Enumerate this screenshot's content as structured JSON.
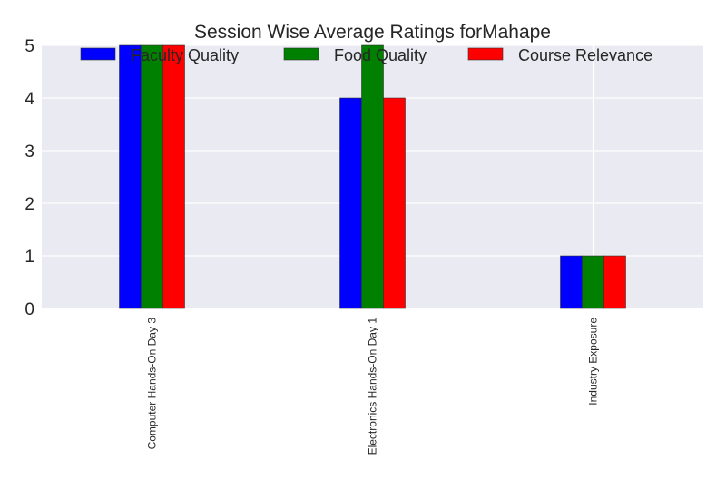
{
  "chart_data": {
    "type": "bar",
    "title": "Session Wise Average Ratings forMahape",
    "categories": [
      "Computer Hands-On Day 3",
      "Electronics Hands-On Day 1",
      "Industry Exposure"
    ],
    "series": [
      {
        "name": "Faculty Quality",
        "values": [
          5,
          4,
          1
        ],
        "color": "#0000ff"
      },
      {
        "name": "Food Quality",
        "values": [
          5,
          5,
          1
        ],
        "color": "#008000"
      },
      {
        "name": "Course Relevance",
        "values": [
          5,
          4,
          1
        ],
        "color": "#ff0000"
      }
    ],
    "xlabel": "",
    "ylabel": "",
    "ylim": [
      0,
      5
    ],
    "yticks": [
      "0",
      "1",
      "2",
      "3",
      "4",
      "5"
    ],
    "grid": true,
    "legend_position": "top",
    "plot_background": "#eaeaf2",
    "grid_color": "#ffffff"
  }
}
